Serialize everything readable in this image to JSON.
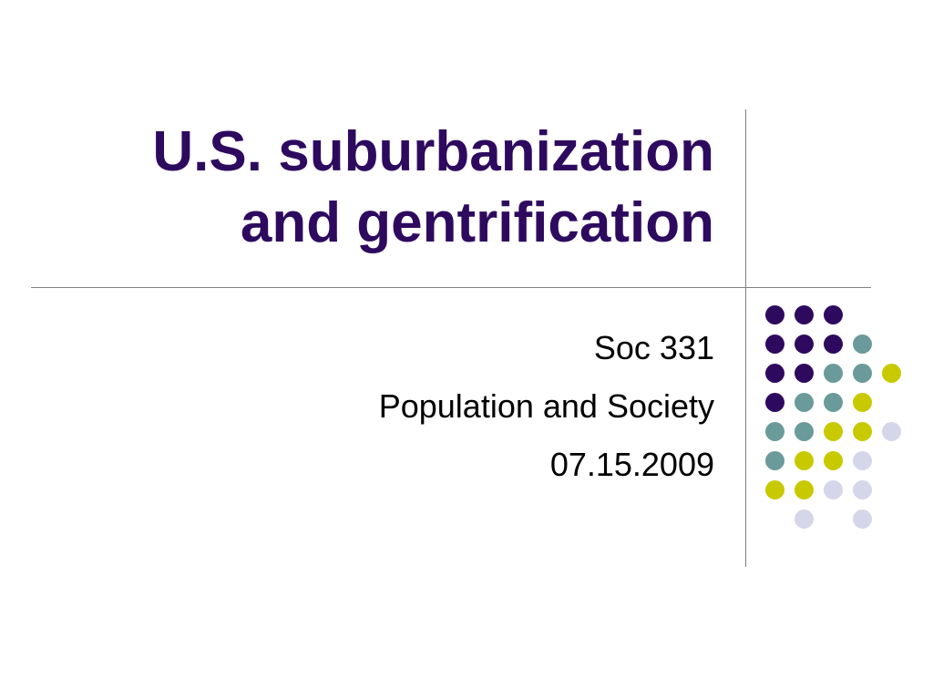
{
  "title": {
    "line1": "U.S. suburbanization",
    "line2": "and gentrification"
  },
  "subtitle": {
    "course": "Soc 331",
    "course_name": "Population and Society",
    "date": "07.15.2009"
  },
  "colors": {
    "title": "#2e0a5f",
    "dot_purple": "#2e0a5f",
    "dot_teal": "#6b9a9a",
    "dot_yellow": "#c9c900",
    "dot_lavender": "#d6d6ea",
    "rule": "#808080"
  },
  "decoration": {
    "dot_grid": [
      [
        "purple",
        "purple",
        "purple",
        null,
        null
      ],
      [
        "purple",
        "purple",
        "purple",
        "teal",
        null
      ],
      [
        "purple",
        "purple",
        "teal",
        "teal",
        "yellow"
      ],
      [
        "purple",
        "teal",
        "teal",
        "yellow",
        null
      ],
      [
        "teal",
        "teal",
        "yellow",
        "yellow",
        "lavender"
      ],
      [
        "teal",
        "yellow",
        "yellow",
        "lavender",
        null
      ],
      [
        "yellow",
        "yellow",
        "lavender",
        "lavender",
        null
      ],
      [
        null,
        "lavender",
        null,
        "lavender",
        null
      ]
    ]
  }
}
